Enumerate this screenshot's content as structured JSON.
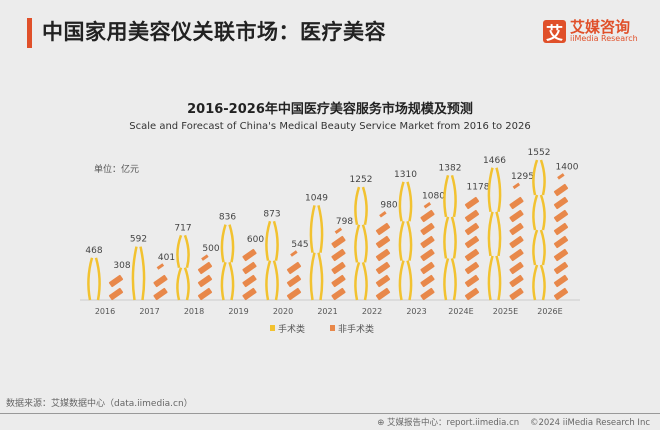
{
  "header": {
    "title": "中国家用美容仪关联市场：医疗美容",
    "logo_mark": "艾",
    "logo_cn": "艾媒咨询",
    "logo_en": "iiMedia Research"
  },
  "chart_data": {
    "type": "bar",
    "title": "2016-2026年中国医疗美容服务市场规模及预测",
    "subtitle": "Scale and Forecast of China's Medical Beauty Service Market from 2016 to 2026",
    "unit": "单位：亿元",
    "categories": [
      "2016",
      "2017",
      "2018",
      "2019",
      "2020",
      "2021",
      "2022",
      "2023",
      "2024E",
      "2025E",
      "2026E"
    ],
    "series": [
      {
        "name": "手术类",
        "color": "#f2c230",
        "values": [
          468,
          592,
          717,
          836,
          873,
          1049,
          1252,
          1310,
          1382,
          1466,
          1552
        ]
      },
      {
        "name": "非手术类",
        "color": "#e8884a",
        "values": [
          308,
          401,
          500,
          600,
          545,
          798,
          980,
          1080,
          1178,
          1295,
          1400
        ]
      }
    ],
    "legend": "bottom-center"
  },
  "footer": {
    "source": "数据来源：艾媒数据中心（data.iimedia.cn）",
    "report": "艾媒报告中心：report.iimedia.cn",
    "copyright": "©2024  iiMedia Research  Inc"
  }
}
